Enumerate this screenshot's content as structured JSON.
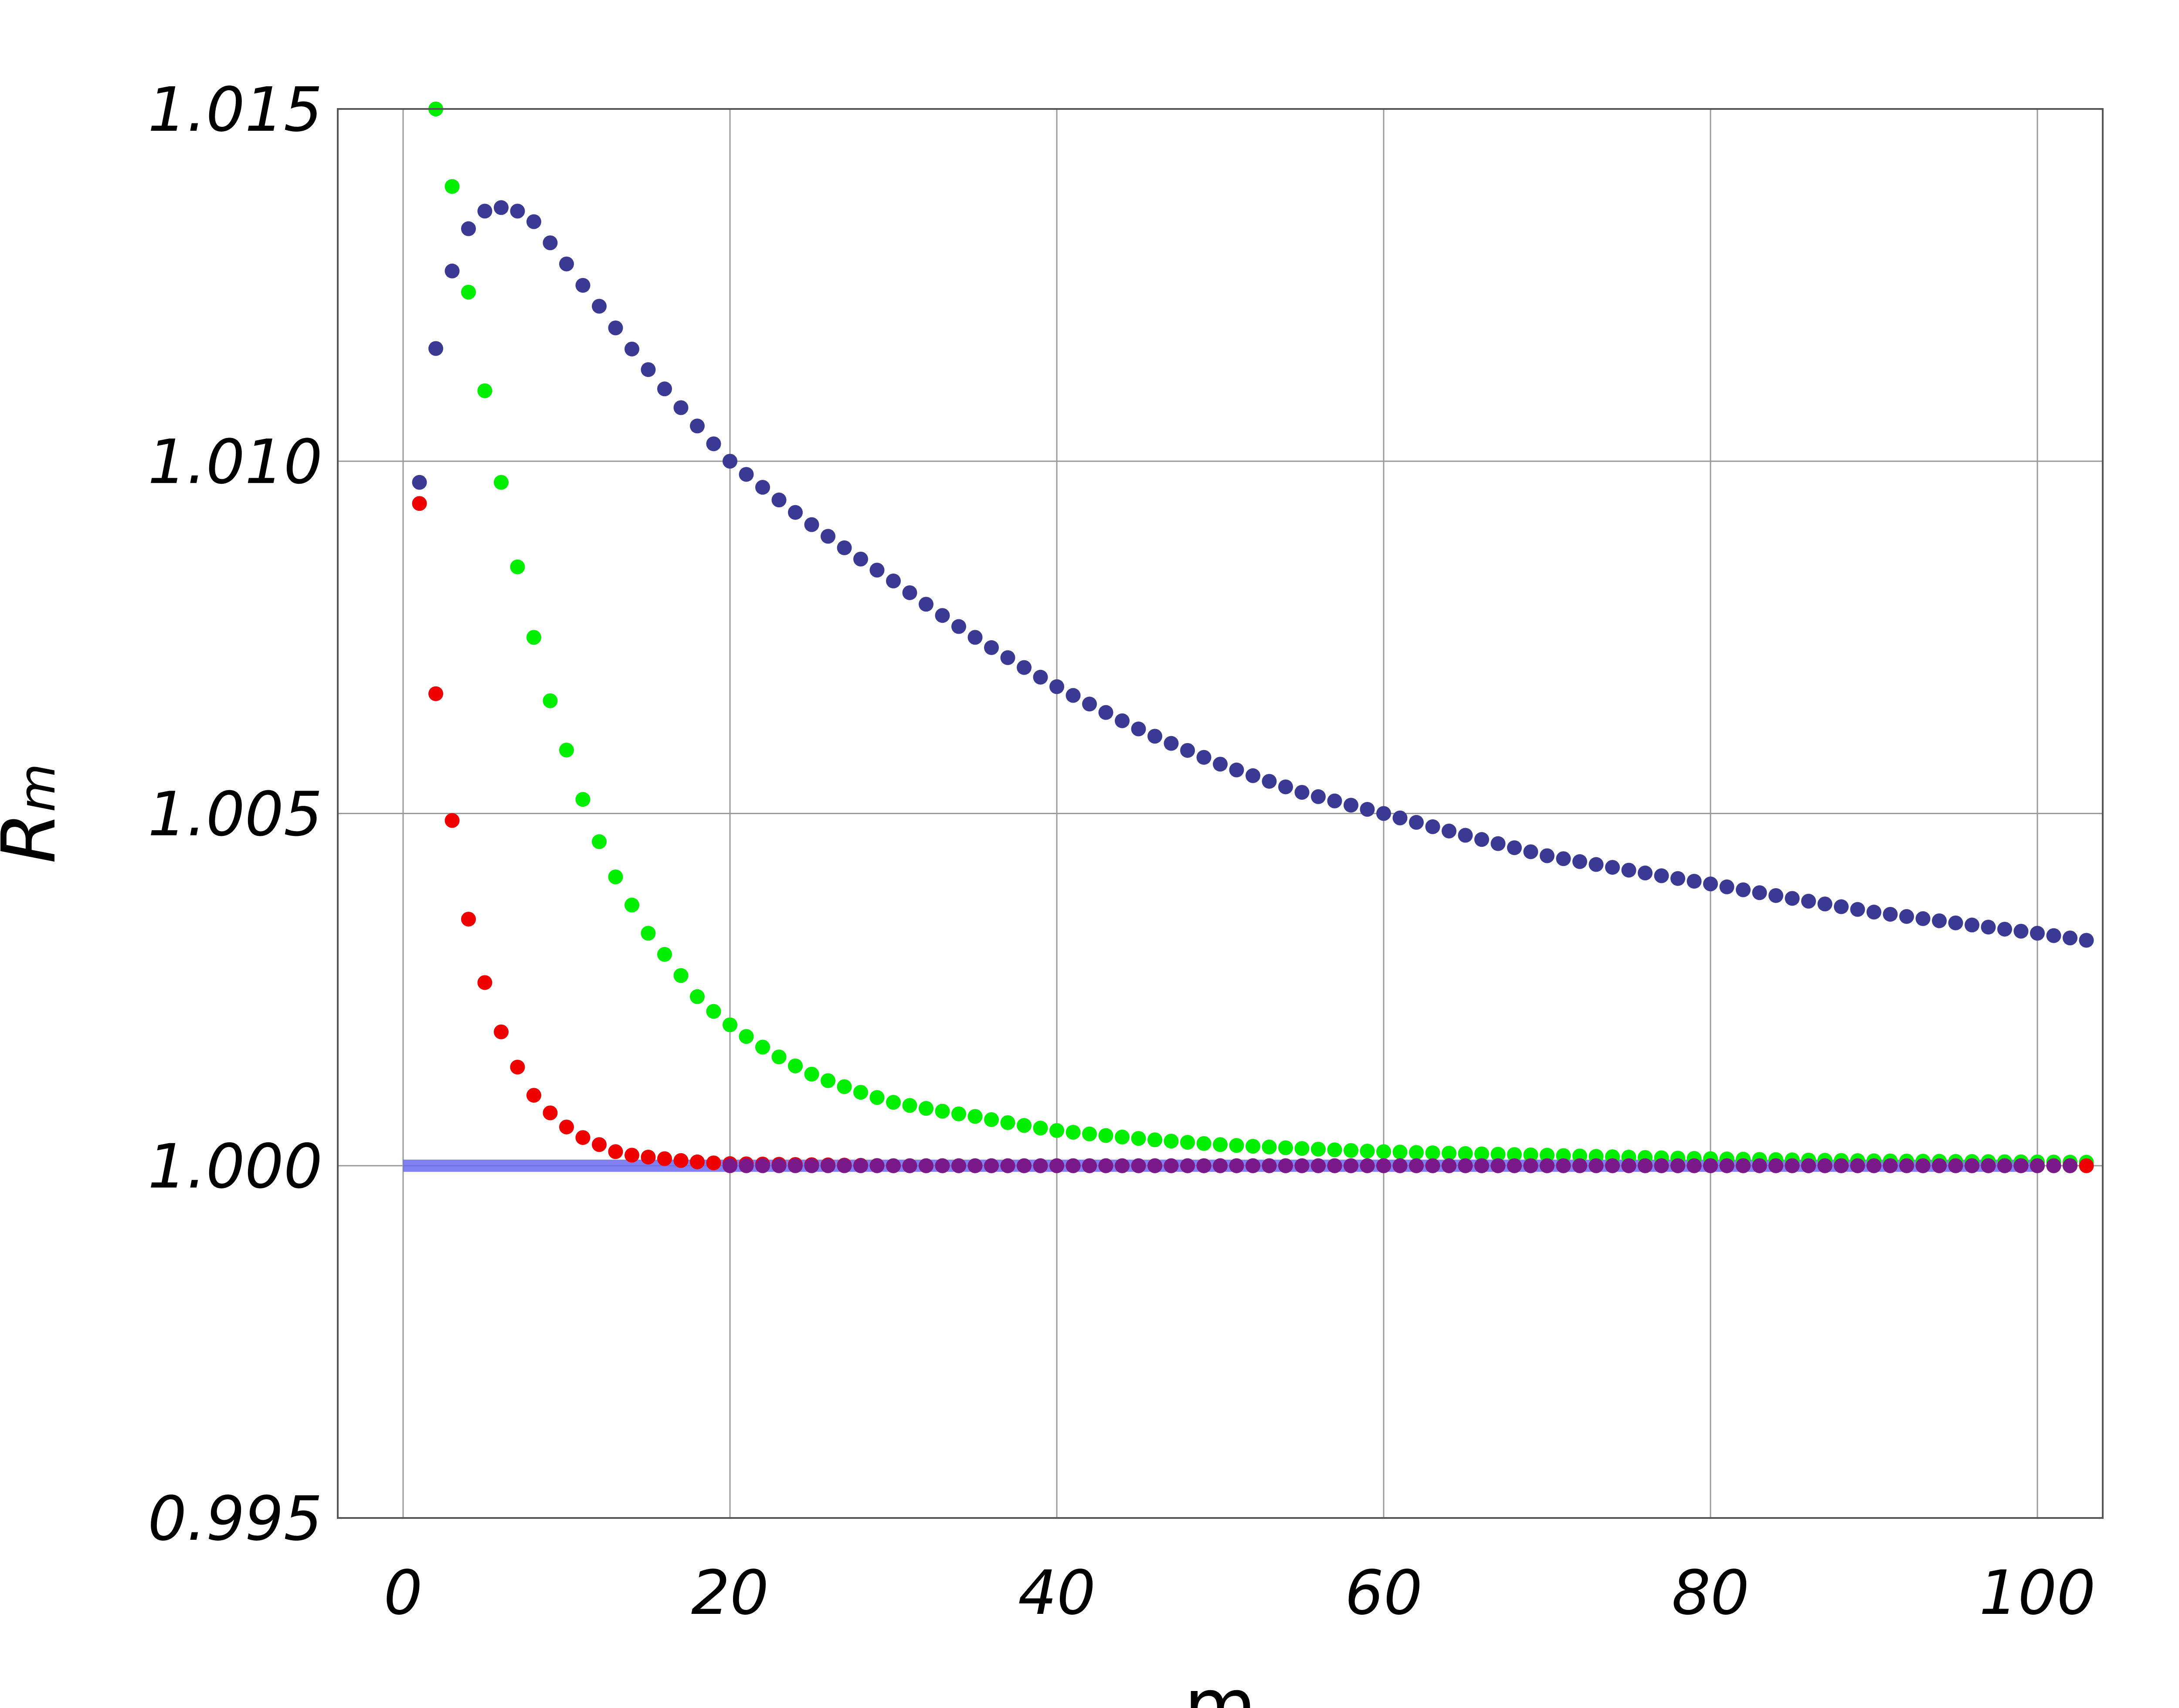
{
  "chart_data": {
    "type": "scatter",
    "title": "",
    "xlabel": "m",
    "ylabel": "R",
    "ylabel_subscript": "m",
    "xlim": [
      -4,
      104
    ],
    "ylim": [
      0.995,
      1.015
    ],
    "x_ticks": [
      0,
      20,
      40,
      60,
      80,
      100
    ],
    "y_ticks": [
      0.995,
      1.0,
      1.005,
      1.01,
      1.015
    ],
    "x_tick_labels": [
      "0",
      "20",
      "40",
      "60",
      "80",
      "100"
    ],
    "y_tick_labels": [
      "0.995",
      "1.000",
      "1.005",
      "1.010",
      "1.015"
    ],
    "grid": true,
    "legend": "none",
    "reference_line": {
      "y": 1.0,
      "x_from": 0,
      "x_to": 100,
      "color": "#6a6af0"
    },
    "series": [
      {
        "color": "#3a3a94",
        "m_range": [
          1,
          103
        ],
        "anchor_points": [
          [
            1,
            1.0097
          ],
          [
            2,
            1.0116
          ],
          [
            3,
            1.0127
          ],
          [
            4,
            1.0133
          ],
          [
            5,
            1.01355
          ],
          [
            6,
            1.0136
          ],
          [
            7,
            1.01355
          ],
          [
            8,
            1.0134
          ],
          [
            9,
            1.0131
          ],
          [
            10,
            1.0128
          ],
          [
            12,
            1.0122
          ],
          [
            15,
            1.0113
          ],
          [
            18,
            1.0105
          ],
          [
            20,
            1.01
          ],
          [
            25,
            1.0091
          ],
          [
            30,
            1.0083
          ],
          [
            35,
            1.0075
          ],
          [
            40,
            1.0068
          ],
          [
            45,
            1.0062
          ],
          [
            50,
            1.0057
          ],
          [
            55,
            1.0053
          ],
          [
            60,
            1.005
          ],
          [
            70,
            1.0044
          ],
          [
            80,
            1.004
          ],
          [
            90,
            1.0036
          ],
          [
            100,
            1.0033
          ],
          [
            103,
            1.0032
          ]
        ]
      },
      {
        "color": "#00ee00",
        "m_range": [
          2,
          103
        ],
        "anchor_points": [
          [
            2,
            1.015
          ],
          [
            3,
            1.0139
          ],
          [
            4,
            1.0124
          ],
          [
            5,
            1.011
          ],
          [
            6,
            1.0097
          ],
          [
            7,
            1.0085
          ],
          [
            8,
            1.0075
          ],
          [
            9,
            1.0066
          ],
          [
            10,
            1.0059
          ],
          [
            11,
            1.0052
          ],
          [
            12,
            1.0046
          ],
          [
            13,
            1.0041
          ],
          [
            14,
            1.0037
          ],
          [
            15,
            1.0033
          ],
          [
            16,
            1.003
          ],
          [
            17,
            1.0027
          ],
          [
            18,
            1.0024
          ],
          [
            20,
            1.002
          ],
          [
            25,
            1.0013
          ],
          [
            30,
            1.0009
          ],
          [
            35,
            1.0007
          ],
          [
            40,
            1.0005
          ],
          [
            50,
            1.0003
          ],
          [
            60,
            1.0002
          ],
          [
            70,
            1.00015
          ],
          [
            80,
            1.0001
          ],
          [
            90,
            1.00007
          ],
          [
            103,
            1.00005
          ]
        ]
      },
      {
        "color": "#ee0000",
        "m_range": [
          1,
          103
        ],
        "anchor_points": [
          [
            1,
            1.0094
          ],
          [
            2,
            1.0067
          ],
          [
            3,
            1.0049
          ],
          [
            4,
            1.0035
          ],
          [
            5,
            1.0026
          ],
          [
            6,
            1.0019
          ],
          [
            7,
            1.0014
          ],
          [
            8,
            1.001
          ],
          [
            9,
            1.00075
          ],
          [
            10,
            1.00055
          ],
          [
            11,
            1.0004
          ],
          [
            12,
            1.0003
          ],
          [
            13,
            1.0002
          ],
          [
            14,
            1.00015
          ],
          [
            16,
            1.0001
          ],
          [
            20,
            1.00003
          ],
          [
            30,
            1.0
          ],
          [
            103,
            1.0
          ]
        ]
      },
      {
        "color": "#7a1a8a",
        "m_range": [
          20,
          102
        ],
        "anchor_points": [
          [
            20,
            1.0
          ],
          [
            102,
            1.0
          ]
        ]
      }
    ]
  }
}
